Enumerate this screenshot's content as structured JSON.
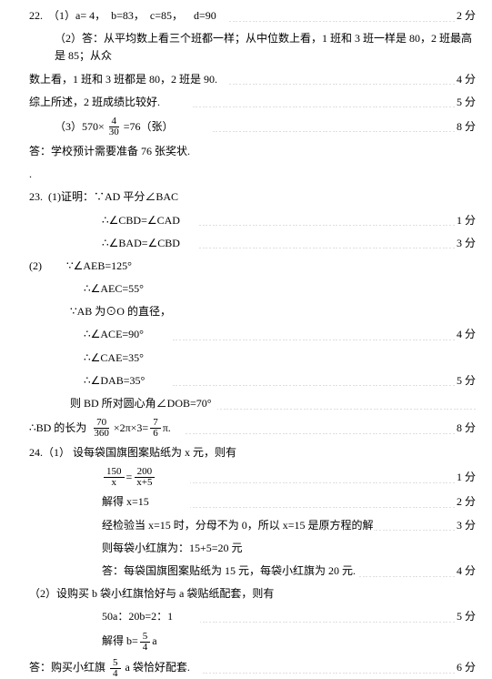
{
  "q22": {
    "l1a": "22.  （1）a= 4，  b=83，  c=85，    d=90    ",
    "l1p": "2 分",
    "l2": "（2）答：从平均数上看三个班都一样；从中位数上看，1 班和 3 班一样是 80，2 班最高是 85；从众",
    "l3a": "数上看，1 班和 3 班都是 80，2 班是 90.    ",
    "l3p": "4 分",
    "l4a": "综上所述，2 班成绩比较好.            ",
    "l4p": "5 分",
    "l5_pre": "（3）570×",
    "l5_num": "4",
    "l5_den": "30",
    "l5_post": "=76（张）              ",
    "l5p": "8 分",
    "l6": "答：学校预计需要准备 76 张奖状.",
    "dot": "."
  },
  "q23": {
    "l1": "23.  (1)证明：∵AD 平分∠BAC",
    "l2a": "∴∠CBD=∠CAD       ",
    "l2p": "1 分",
    "l3a": "∴∠BAD=∠CBD       ",
    "l3p": "3 分",
    "l4": "(2)         ∵∠AEB=125°",
    "l5": "∴∠AEC=55°",
    "l6": "∵AB 为⊙O 的直径，",
    "l7a": "∴∠ACE=90°          ",
    "l7p": "4 分",
    "l8": "∴∠CAE=35°",
    "l9a": "∴∠DAB=35°          ",
    "l9p": "5 分",
    "l10a": "则 BD 所对圆心角∠DOB=70°  ",
    "l11_pre": "∴BD 的长为 ",
    "l11_n1": "70",
    "l11_d1": "360",
    "l11_mid": "×2π×3=",
    "l11_n2": "7",
    "l11_d2": "6",
    "l11_post": "π.     ",
    "l11p": "8 分"
  },
  "q24": {
    "l1": "24.（1） 设每袋国旗图案贴纸为 x 元，则有",
    "l2_n1": "150",
    "l2_d1": "x",
    "l2_eq": "=",
    "l2_n2": "200",
    "l2_d2": "x+5",
    "l2a": "            ",
    "l2p": "1 分",
    "l3a": "解得 x=15               ",
    "l3p": "2 分",
    "l4a": "经检验当 x=15 时，分母不为 0，所以 x=15 是原方程的解",
    "l4p": "3 分",
    "l5": "则每袋小红旗为：15+5=20 元",
    "l6a": "答：每袋国旗图案贴纸为 15 元，每袋小红旗为 20 元. ",
    "l6p": "4 分",
    "l7": "（2）设购买 b 袋小红旗恰好与 a 袋贴纸配套，则有",
    "l8a": "50a：20b=2：1          ",
    "l8p": "5 分",
    "l9_pre": "解得 b=",
    "l9_n": "5",
    "l9_d": "4",
    "l9_post": "a",
    "l10_pre": "答：购买小红旗 ",
    "l10_n": "5",
    "l10_d": "4",
    "l10_post": " a 袋恰好配套.    ",
    "l10p": "6 分"
  }
}
